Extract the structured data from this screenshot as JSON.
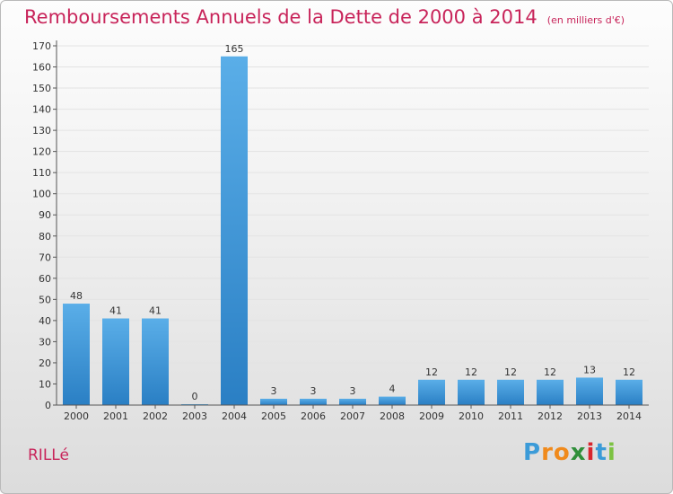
{
  "title": "Remboursements Annuels de la Dette de 2000 à 2014",
  "unit": "(en milliers d'€)",
  "commune": "RILLé",
  "brand": {
    "letters": [
      "P",
      "r",
      "o",
      "x",
      "i",
      "t",
      "i"
    ],
    "colors": [
      "#3b9bd8",
      "#f08a1c",
      "#f08a1c",
      "#2f8f3a",
      "#d8262e",
      "#3b9bd8",
      "#7cc242"
    ]
  },
  "colors": {
    "bar": "#2a84cc",
    "bar_light": "#5aaee8",
    "accent": "#c8245a",
    "axis": "#555555",
    "grid": "#e3e3e3"
  },
  "chart_data": {
    "type": "bar",
    "categories": [
      "2000",
      "2001",
      "2002",
      "2003",
      "2004",
      "2005",
      "2006",
      "2007",
      "2008",
      "2009",
      "2010",
      "2011",
      "2012",
      "2013",
      "2014"
    ],
    "values": [
      48,
      41,
      41,
      0,
      165,
      3,
      3,
      3,
      4,
      12,
      12,
      12,
      12,
      13,
      12
    ],
    "ylim": [
      0,
      170
    ],
    "yticks": [
      0,
      10,
      20,
      30,
      40,
      50,
      60,
      70,
      80,
      90,
      100,
      110,
      120,
      130,
      140,
      150,
      160,
      170
    ],
    "grid": true,
    "xlabel": "",
    "ylabel": ""
  }
}
